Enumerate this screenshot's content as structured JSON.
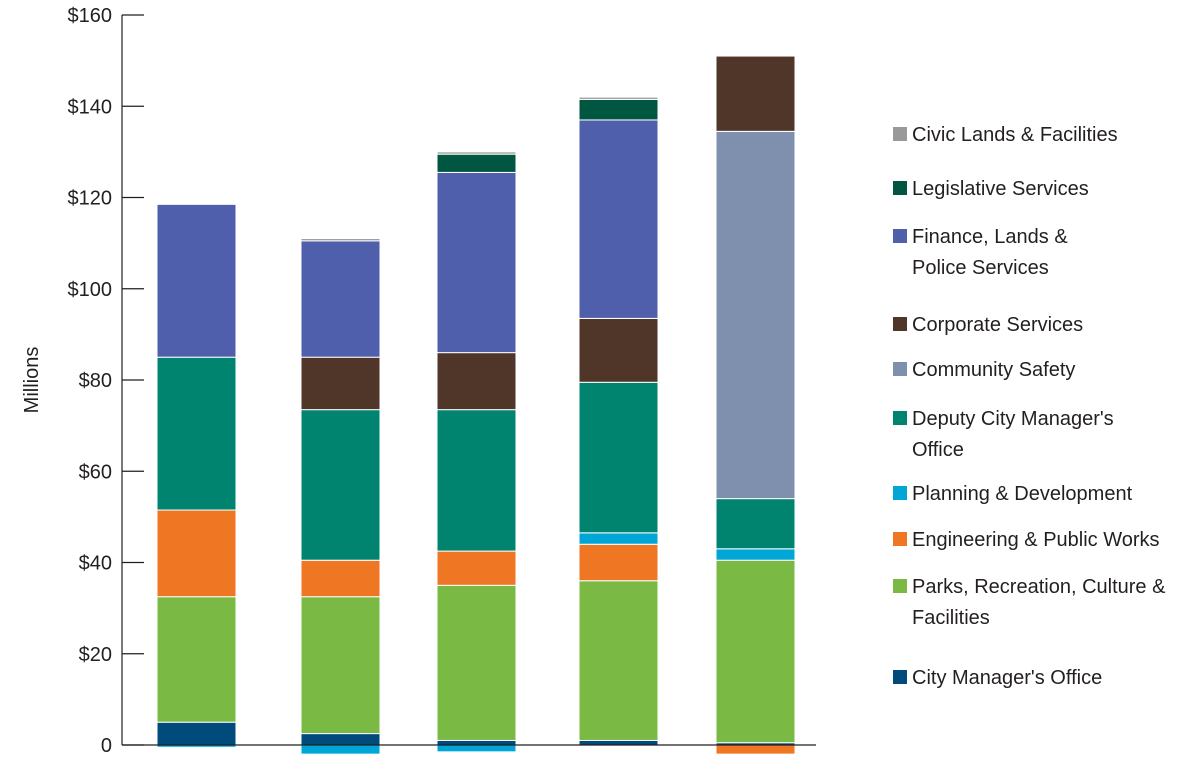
{
  "chart_data": {
    "type": "bar",
    "stacked": true,
    "title": "",
    "xlabel": "",
    "ylabel": "Millions",
    "ylim": [
      0,
      160
    ],
    "y_ticks": [
      {
        "value": 0,
        "label": "0"
      },
      {
        "value": 20,
        "label": "$20"
      },
      {
        "value": 40,
        "label": "$40"
      },
      {
        "value": 60,
        "label": "$60"
      },
      {
        "value": 80,
        "label": "$80"
      },
      {
        "value": 100,
        "label": "$100"
      },
      {
        "value": 120,
        "label": "$120"
      },
      {
        "value": 140,
        "label": "$140"
      },
      {
        "value": 160,
        "label": "$160"
      }
    ],
    "categories": [
      "",
      "",
      "",
      "",
      ""
    ],
    "grid": false,
    "legend_position": "right",
    "series": [
      {
        "name": "City Manager's Office",
        "color": "#004b7c",
        "values": [
          5,
          2.5,
          1,
          1,
          0.5
        ]
      },
      {
        "name": "Parks, Recreation, Culture & Facilities",
        "color": "#7ab943",
        "values": [
          27.5,
          30,
          34,
          35,
          40
        ]
      },
      {
        "name": "Engineering & Public Works",
        "color": "#ef7622",
        "values": [
          19,
          8,
          7.5,
          8,
          -2
        ]
      },
      {
        "name": "Planning & Development",
        "color": "#00a6d6",
        "values": [
          -0.5,
          -2,
          -1.5,
          2.5,
          2.5
        ]
      },
      {
        "name": "Deputy City Manager's Office",
        "color": "#00846f",
        "values": [
          33.5,
          33,
          31,
          33,
          11
        ]
      },
      {
        "name": "Community Safety",
        "color": "#7f8fae",
        "values": [
          0,
          0,
          0,
          0,
          80.5
        ]
      },
      {
        "name": "Corporate Services",
        "color": "#4f3629",
        "values": [
          0,
          11.5,
          12.5,
          14,
          16.5
        ]
      },
      {
        "name": "Finance, Lands & Police Services",
        "color": "#4f5fab",
        "values": [
          33.5,
          25.5,
          39.5,
          43.5,
          0
        ]
      },
      {
        "name": "Legislative Services",
        "color": "#005640",
        "values": [
          0,
          0,
          4,
          4.5,
          0
        ]
      },
      {
        "name": "Civic Lands & Facilities",
        "color": "#999999",
        "values": [
          0,
          0.5,
          0.5,
          0.5,
          0
        ]
      }
    ],
    "legend": [
      {
        "lines": [
          "Civic Lands & Facilities"
        ],
        "color": "#999999"
      },
      {
        "lines": [
          "Legislative Services"
        ],
        "color": "#005640"
      },
      {
        "lines": [
          "Finance, Lands &",
          "Police Services"
        ],
        "color": "#4f5fab"
      },
      {
        "lines": [
          "Corporate Services"
        ],
        "color": "#4f3629"
      },
      {
        "lines": [
          "Community Safety"
        ],
        "color": "#7f8fae"
      },
      {
        "lines": [
          "Deputy City Manager's",
          "Office"
        ],
        "color": "#00846f"
      },
      {
        "lines": [
          "Planning & Development"
        ],
        "color": "#00a6d6"
      },
      {
        "lines": [
          "Engineering & Public Works"
        ],
        "color": "#ef7622"
      },
      {
        "lines": [
          "Parks, Recreation, Culture &",
          "Facilities"
        ],
        "color": "#7ab943"
      },
      {
        "lines": [
          "City Manager's Office"
        ],
        "color": "#004b7c"
      }
    ]
  }
}
